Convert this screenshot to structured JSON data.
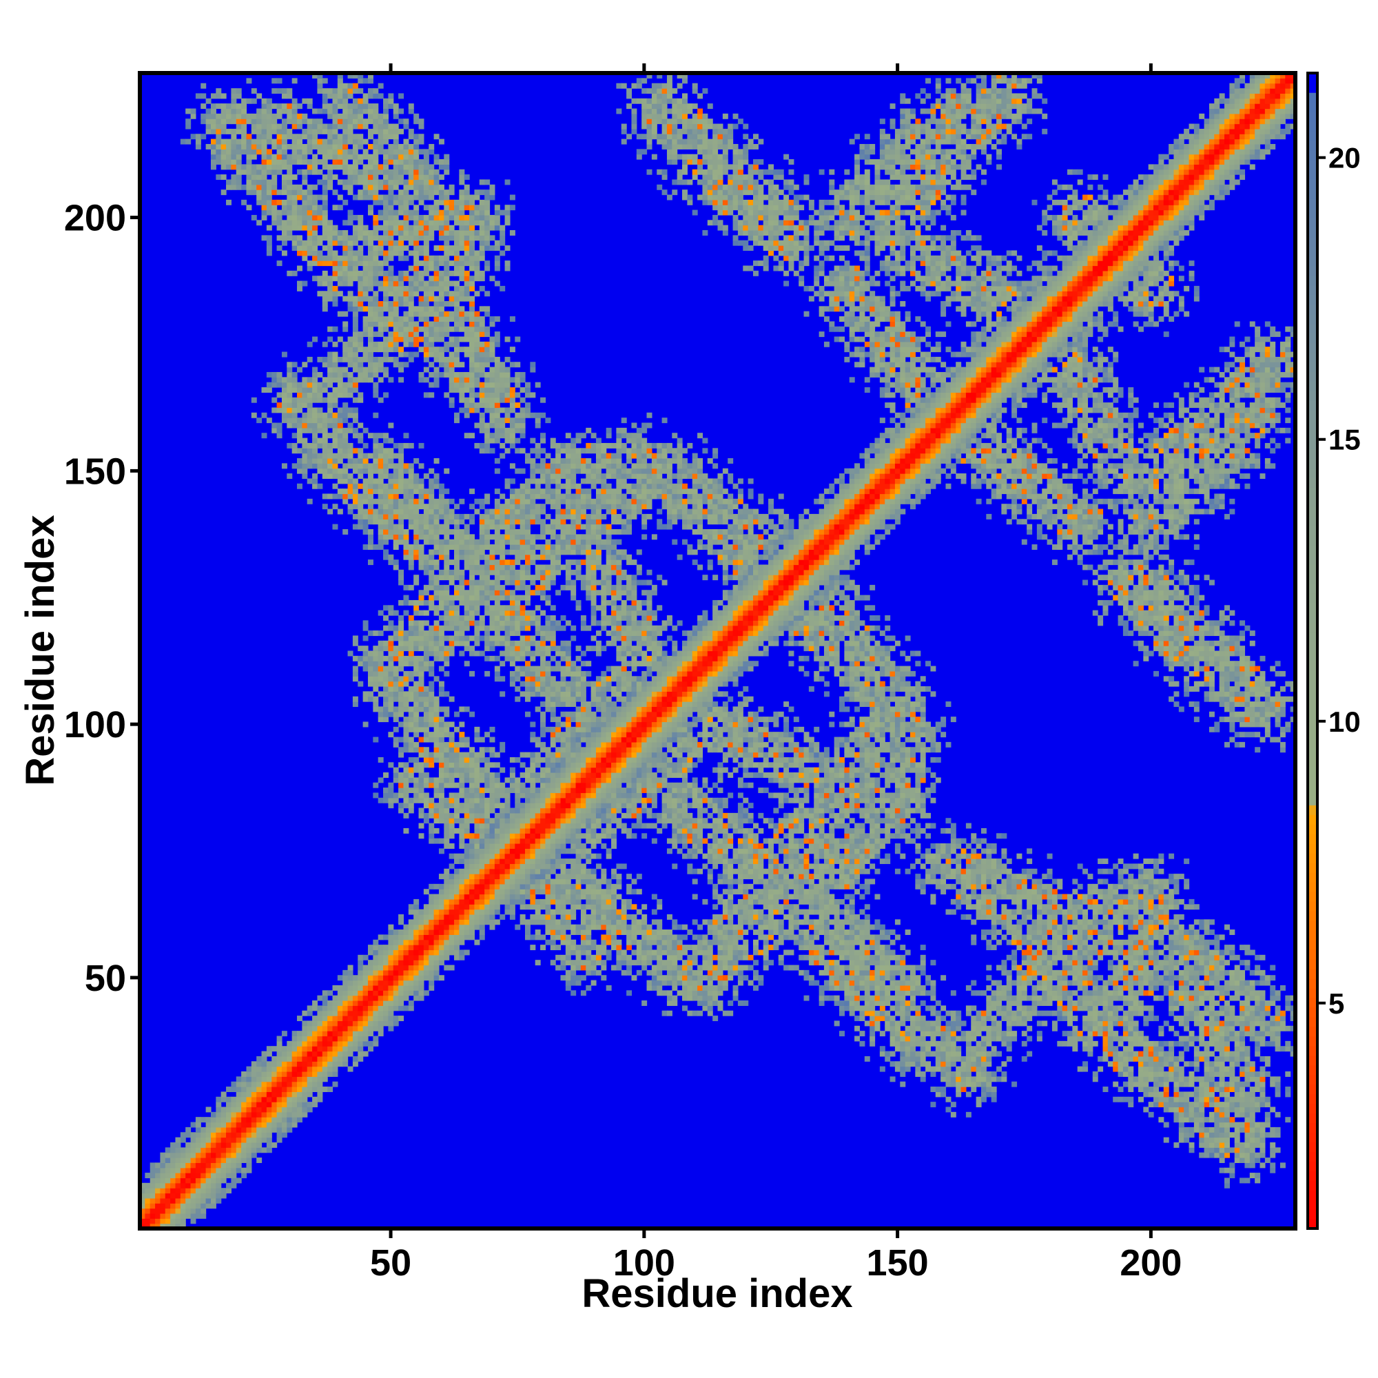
{
  "chart_data": {
    "type": "heatmap",
    "title": "",
    "xlabel": "Residue index",
    "ylabel": "Residue index",
    "x_range": [
      1,
      228
    ],
    "y_range": [
      1,
      228
    ],
    "x_ticks": [
      50,
      100,
      150,
      200
    ],
    "y_ticks": [
      50,
      100,
      150,
      200
    ],
    "x_tick_labels": [
      "50",
      "100",
      "150",
      "200"
    ],
    "y_tick_labels": [
      "50",
      "100",
      "150",
      "200"
    ],
    "colorbar": {
      "range": [
        1,
        21.5
      ],
      "ticks": [
        5,
        10,
        15,
        20
      ],
      "tick_labels": [
        "5",
        "10",
        "15",
        "20"
      ],
      "stops": [
        {
          "value": 1,
          "color": "#ff0000"
        },
        {
          "value": 5,
          "color": "#ff5a00"
        },
        {
          "value": 8.4,
          "color": "#ffa500"
        },
        {
          "value": 8.6,
          "color": "#9aaf85"
        },
        {
          "value": 14,
          "color": "#8aa090"
        },
        {
          "value": 21.5,
          "color": "#4a70b8"
        }
      ]
    },
    "background_value": 21.5,
    "background_color": "#0000f0",
    "symmetric": true,
    "description_regions": [
      {
        "name": "diagonal",
        "x": [
          1,
          228
        ],
        "y": [
          1,
          228
        ],
        "min_value": 1
      },
      {
        "name": "contact-band-1",
        "path": [
          [
            120,
            30
          ],
          [
            150,
            58
          ],
          [
            165,
            30
          ]
        ],
        "min_value": 4
      },
      {
        "name": "contact-band-2",
        "path": [
          [
            165,
            30
          ],
          [
            185,
            62
          ],
          [
            215,
            38
          ]
        ],
        "min_value": 4
      }
    ],
    "contact_bands": [
      [
        [
          18,
          218
        ],
        [
          40,
          190
        ],
        [
          55,
          200
        ],
        [
          72,
          160
        ]
      ],
      [
        [
          40,
          190
        ],
        [
          62,
          175
        ],
        [
          72,
          160
        ]
      ],
      [
        [
          48,
          150
        ],
        [
          66,
          130
        ],
        [
          72,
          120
        ],
        [
          84,
          108
        ]
      ],
      [
        [
          48,
          150
        ],
        [
          84,
          108
        ]
      ],
      [
        [
          50,
          112
        ],
        [
          70,
          124
        ],
        [
          88,
          140
        ],
        [
          104,
          150
        ],
        [
          120,
          138
        ],
        [
          132,
          130
        ]
      ],
      [
        [
          76,
          70
        ],
        [
          96,
          86
        ],
        [
          112,
          100
        ],
        [
          126,
          94
        ],
        [
          140,
          84
        ]
      ],
      [
        [
          56,
          88
        ],
        [
          78,
          74
        ],
        [
          96,
          60
        ],
        [
          110,
          50
        ]
      ],
      [
        [
          104,
          220
        ],
        [
          116,
          206
        ],
        [
          128,
          196
        ]
      ],
      [
        [
          140,
          200
        ],
        [
          154,
          214
        ],
        [
          162,
          220
        ]
      ],
      [
        [
          150,
          172
        ],
        [
          160,
          160
        ],
        [
          170,
          152
        ],
        [
          186,
          140
        ]
      ],
      [
        [
          168,
          172
        ],
        [
          190,
          194
        ],
        [
          200,
          186
        ]
      ],
      [
        [
          200,
          126
        ],
        [
          214,
          112
        ],
        [
          222,
          104
        ]
      ],
      [
        [
          200,
          150
        ],
        [
          214,
          160
        ],
        [
          224,
          172
        ]
      ],
      [
        [
          128,
          124
        ],
        [
          142,
          112
        ],
        [
          152,
          98
        ],
        [
          150,
          86
        ],
        [
          138,
          72
        ],
        [
          124,
          60
        ],
        [
          112,
          52
        ]
      ],
      [
        [
          136,
          56
        ],
        [
          152,
          40
        ],
        [
          164,
          32
        ]
      ],
      [
        [
          168,
          40
        ],
        [
          184,
          56
        ],
        [
          196,
          62
        ],
        [
          210,
          52
        ],
        [
          222,
          42
        ]
      ],
      [
        [
          186,
          62
        ],
        [
          200,
          66
        ]
      ],
      [
        [
          28,
          218
        ],
        [
          46,
          208
        ]
      ],
      [
        [
          178,
          176
        ],
        [
          188,
          164
        ],
        [
          194,
          150
        ]
      ]
    ]
  }
}
